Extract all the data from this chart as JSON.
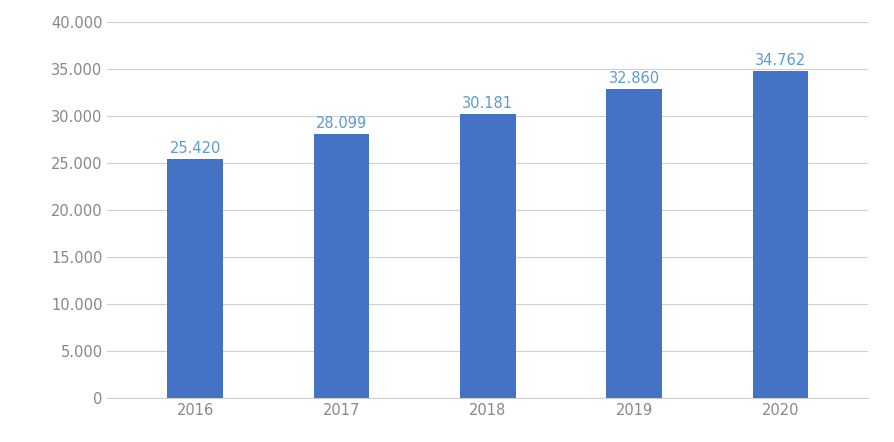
{
  "categories": [
    "2016",
    "2017",
    "2018",
    "2019",
    "2020"
  ],
  "values": [
    25420,
    28099,
    30181,
    32860,
    34762
  ],
  "labels": [
    "25.420",
    "28.099",
    "30.181",
    "32.860",
    "34.762"
  ],
  "bar_color": "#4472c4",
  "label_color": "#5b9bd5",
  "background_color": "#ffffff",
  "ylim": [
    0,
    40000
  ],
  "yticks": [
    0,
    5000,
    10000,
    15000,
    20000,
    25000,
    30000,
    35000,
    40000
  ],
  "ytick_labels": [
    "0",
    "5.000",
    "10.000",
    "15.000",
    "20.000",
    "25.000",
    "30.000",
    "35.000",
    "40.000"
  ],
  "grid_color": "#d0d0d0",
  "bar_width": 0.38,
  "label_fontsize": 10.5,
  "tick_fontsize": 10.5,
  "tick_color": "#888888"
}
